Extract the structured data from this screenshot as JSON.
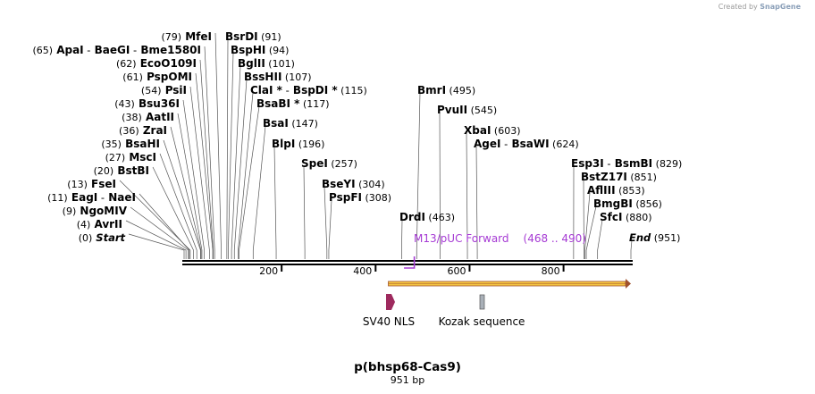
{
  "credit": {
    "created_by": "Created by",
    "brand": "SnapGene"
  },
  "map": {
    "name": "p(bhsp68-Cas9)",
    "length_label": "951 bp",
    "length": 951,
    "ticks": [
      {
        "value": 200,
        "label": "200"
      },
      {
        "value": 400,
        "label": "400"
      },
      {
        "value": 600,
        "label": "600"
      },
      {
        "value": 800,
        "label": "800"
      }
    ]
  },
  "sites": [
    {
      "parts": [
        {
          "t": "(0)",
          "k": "pos"
        },
        {
          "t": "Start",
          "k": "itl"
        }
      ],
      "pos": 0
    },
    {
      "parts": [
        {
          "t": "(4)",
          "k": "pos"
        },
        {
          "t": "AvrII",
          "k": "enz"
        }
      ],
      "pos": 4
    },
    {
      "parts": [
        {
          "t": "(9)",
          "k": "pos"
        },
        {
          "t": "NgoMIV",
          "k": "enz"
        }
      ],
      "pos": 9
    },
    {
      "parts": [
        {
          "t": "(11)",
          "k": "pos"
        },
        {
          "t": "EagI",
          "k": "enz"
        },
        {
          "t": "-",
          "k": "sep"
        },
        {
          "t": "NaeI",
          "k": "enz"
        }
      ],
      "pos": 11
    },
    {
      "parts": [
        {
          "t": "(13)",
          "k": "pos"
        },
        {
          "t": "FseI",
          "k": "enz"
        }
      ],
      "pos": 13
    },
    {
      "parts": [
        {
          "t": "(20)",
          "k": "pos"
        },
        {
          "t": "BstBI",
          "k": "enz"
        }
      ],
      "pos": 20
    },
    {
      "parts": [
        {
          "t": "(27)",
          "k": "pos"
        },
        {
          "t": "MscI",
          "k": "enz"
        }
      ],
      "pos": 27
    },
    {
      "parts": [
        {
          "t": "(35)",
          "k": "pos"
        },
        {
          "t": "BsaHI",
          "k": "enz"
        }
      ],
      "pos": 35
    },
    {
      "parts": [
        {
          "t": "(36)",
          "k": "pos"
        },
        {
          "t": "ZraI",
          "k": "enz"
        }
      ],
      "pos": 36
    },
    {
      "parts": [
        {
          "t": "(38)",
          "k": "pos"
        },
        {
          "t": "AatII",
          "k": "enz"
        }
      ],
      "pos": 38
    },
    {
      "parts": [
        {
          "t": "(43)",
          "k": "pos"
        },
        {
          "t": "Bsu36I",
          "k": "enz"
        }
      ],
      "pos": 43
    },
    {
      "parts": [
        {
          "t": "(54)",
          "k": "pos"
        },
        {
          "t": "PsiI",
          "k": "enz"
        }
      ],
      "pos": 54
    },
    {
      "parts": [
        {
          "t": "(61)",
          "k": "pos"
        },
        {
          "t": "PspOMI",
          "k": "enz"
        }
      ],
      "pos": 61
    },
    {
      "parts": [
        {
          "t": "(62)",
          "k": "pos"
        },
        {
          "t": "EcoO109I",
          "k": "enz"
        }
      ],
      "pos": 62
    },
    {
      "parts": [
        {
          "t": "(65)",
          "k": "pos"
        },
        {
          "t": "ApaI",
          "k": "enz"
        },
        {
          "t": "-",
          "k": "sep"
        },
        {
          "t": "BaeGI",
          "k": "enz"
        },
        {
          "t": "-",
          "k": "sep"
        },
        {
          "t": "Bme1580I",
          "k": "enz"
        }
      ],
      "pos": 65
    },
    {
      "parts": [
        {
          "t": "(79)",
          "k": "pos"
        },
        {
          "t": "MfeI",
          "k": "enz"
        }
      ],
      "pos": 79
    },
    {
      "parts": [
        {
          "t": "BsrDI",
          "k": "enz"
        },
        {
          "t": "(91)",
          "k": "pos"
        }
      ],
      "pos": 91
    },
    {
      "parts": [
        {
          "t": "BspHI",
          "k": "enz"
        },
        {
          "t": "(94)",
          "k": "pos"
        }
      ],
      "pos": 94
    },
    {
      "parts": [
        {
          "t": "BglII",
          "k": "enz"
        },
        {
          "t": "(101)",
          "k": "pos"
        }
      ],
      "pos": 101
    },
    {
      "parts": [
        {
          "t": "BssHII",
          "k": "enz"
        },
        {
          "t": "(107)",
          "k": "pos"
        }
      ],
      "pos": 107
    },
    {
      "parts": [
        {
          "t": "ClaI *",
          "k": "enz"
        },
        {
          "t": "-",
          "k": "sep"
        },
        {
          "t": "BspDI *",
          "k": "enz"
        },
        {
          "t": "(115)",
          "k": "pos"
        }
      ],
      "pos": 115
    },
    {
      "parts": [
        {
          "t": "BsaBI *",
          "k": "enz"
        },
        {
          "t": "(117)",
          "k": "pos"
        }
      ],
      "pos": 117
    },
    {
      "parts": [
        {
          "t": "BsaI",
          "k": "enz"
        },
        {
          "t": "(147)",
          "k": "pos"
        }
      ],
      "pos": 147
    },
    {
      "parts": [
        {
          "t": "BlpI",
          "k": "enz"
        },
        {
          "t": "(196)",
          "k": "pos"
        }
      ],
      "pos": 196
    },
    {
      "parts": [
        {
          "t": "SpeI",
          "k": "enz"
        },
        {
          "t": "(257)",
          "k": "pos"
        }
      ],
      "pos": 257
    },
    {
      "parts": [
        {
          "t": "BseYI",
          "k": "enz"
        },
        {
          "t": "(304)",
          "k": "pos"
        }
      ],
      "pos": 304
    },
    {
      "parts": [
        {
          "t": "PspFI",
          "k": "enz"
        },
        {
          "t": "(308)",
          "k": "pos"
        }
      ],
      "pos": 308
    },
    {
      "parts": [
        {
          "t": "DrdI",
          "k": "enz"
        },
        {
          "t": "(463)",
          "k": "pos"
        }
      ],
      "pos": 463
    },
    {
      "parts": [
        {
          "t": "BmrI",
          "k": "enz"
        },
        {
          "t": "(495)",
          "k": "pos"
        }
      ],
      "pos": 495
    },
    {
      "parts": [
        {
          "t": "PvuII",
          "k": "enz"
        },
        {
          "t": "(545)",
          "k": "pos"
        }
      ],
      "pos": 545
    },
    {
      "parts": [
        {
          "t": "XbaI",
          "k": "enz"
        },
        {
          "t": "(603)",
          "k": "pos"
        }
      ],
      "pos": 603
    },
    {
      "parts": [
        {
          "t": "AgeI",
          "k": "enz"
        },
        {
          "t": "-",
          "k": "sep"
        },
        {
          "t": "BsaWI",
          "k": "enz"
        },
        {
          "t": "(624)",
          "k": "pos"
        }
      ],
      "pos": 624
    },
    {
      "parts": [
        {
          "t": "Esp3I",
          "k": "enz"
        },
        {
          "t": "-",
          "k": "sep"
        },
        {
          "t": "BsmBI",
          "k": "enz"
        },
        {
          "t": "(829)",
          "k": "pos"
        }
      ],
      "pos": 829
    },
    {
      "parts": [
        {
          "t": "BstZ17I",
          "k": "enz"
        },
        {
          "t": "(851)",
          "k": "pos"
        }
      ],
      "pos": 851
    },
    {
      "parts": [
        {
          "t": "AflIII",
          "k": "enz"
        },
        {
          "t": "(853)",
          "k": "pos"
        }
      ],
      "pos": 853
    },
    {
      "parts": [
        {
          "t": "BmgBI",
          "k": "enz"
        },
        {
          "t": "(856)",
          "k": "pos"
        }
      ],
      "pos": 856
    },
    {
      "parts": [
        {
          "t": "SfcI",
          "k": "enz"
        },
        {
          "t": "(880)",
          "k": "pos"
        }
      ],
      "pos": 880
    },
    {
      "parts": [
        {
          "t": "End",
          "k": "itl"
        },
        {
          "t": "(951)",
          "k": "pos"
        }
      ],
      "pos": 951
    }
  ],
  "primer": {
    "name": "M13/pUC Forward",
    "range": "(468 .. 490)",
    "start": 468,
    "end": 490,
    "color": "#a63bd4"
  },
  "features": [
    {
      "name": "",
      "start": 408,
      "end": 951,
      "color": "#f5c542",
      "outline": "#a0522d",
      "kind": "arrow"
    },
    {
      "name": "SV40 NLS",
      "start": 430,
      "end": 451,
      "color": "#9e2a5e",
      "kind": "pentagon"
    },
    {
      "name": "Kozak sequence",
      "start": 628,
      "end": 638,
      "color": "#a9b0b8",
      "kind": "box"
    }
  ]
}
